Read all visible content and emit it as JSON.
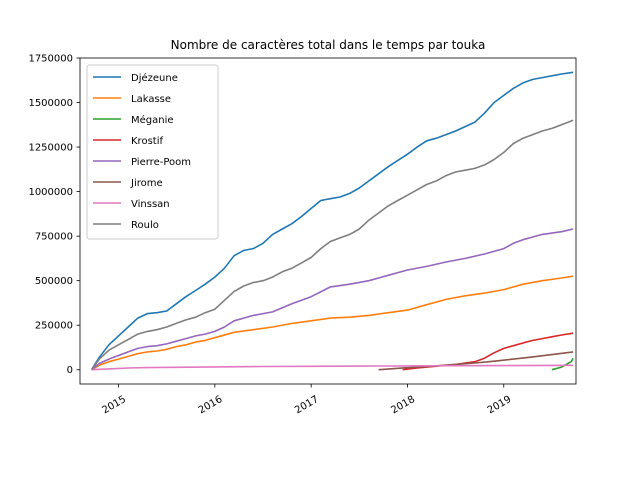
{
  "chart_data": {
    "type": "line",
    "title": "Nombre de caractères total dans le temps par touka",
    "xlabel": "",
    "ylabel": "",
    "x_ticks": [
      "2015",
      "2016",
      "2017",
      "2018",
      "2019"
    ],
    "y_ticks": [
      "0",
      "250000",
      "500000",
      "750000",
      "1000000",
      "1250000",
      "1500000",
      "1750000"
    ],
    "ylim": [
      -80000,
      1750000
    ],
    "xlim": [
      2014.6,
      2019.75
    ],
    "legend_position": "upper-left",
    "grid": false,
    "series": [
      {
        "name": "Djézeune",
        "color": "#1f77b4",
        "x": [
          2014.72,
          2014.8,
          2014.9,
          2015.0,
          2015.1,
          2015.2,
          2015.3,
          2015.4,
          2015.5,
          2015.6,
          2015.7,
          2015.8,
          2015.9,
          2016.0,
          2016.1,
          2016.2,
          2016.3,
          2016.4,
          2016.5,
          2016.6,
          2016.7,
          2016.8,
          2016.9,
          2017.0,
          2017.1,
          2017.2,
          2017.3,
          2017.4,
          2017.5,
          2017.6,
          2017.7,
          2017.8,
          2017.9,
          2018.0,
          2018.1,
          2018.2,
          2018.3,
          2018.4,
          2018.5,
          2018.6,
          2018.7,
          2018.8,
          2018.9,
          2019.0,
          2019.1,
          2019.2,
          2019.3,
          2019.4,
          2019.5,
          2019.6,
          2019.72
        ],
        "y": [
          0,
          70000,
          140000,
          190000,
          240000,
          290000,
          315000,
          320000,
          330000,
          370000,
          410000,
          445000,
          480000,
          520000,
          570000,
          640000,
          670000,
          680000,
          710000,
          760000,
          790000,
          820000,
          860000,
          905000,
          950000,
          960000,
          970000,
          990000,
          1020000,
          1060000,
          1100000,
          1140000,
          1175000,
          1210000,
          1250000,
          1285000,
          1300000,
          1320000,
          1340000,
          1365000,
          1390000,
          1440000,
          1500000,
          1540000,
          1580000,
          1610000,
          1630000,
          1640000,
          1650000,
          1660000,
          1670000
        ]
      },
      {
        "name": "Lakasse",
        "color": "#ff7f0e",
        "x": [
          2014.72,
          2014.8,
          2014.9,
          2015.0,
          2015.1,
          2015.2,
          2015.3,
          2015.4,
          2015.5,
          2015.6,
          2015.7,
          2015.8,
          2015.9,
          2016.0,
          2016.2,
          2016.4,
          2016.6,
          2016.8,
          2017.0,
          2017.2,
          2017.4,
          2017.6,
          2017.8,
          2018.0,
          2018.2,
          2018.4,
          2018.6,
          2018.8,
          2019.0,
          2019.2,
          2019.4,
          2019.6,
          2019.72
        ],
        "y": [
          0,
          25000,
          45000,
          60000,
          75000,
          90000,
          100000,
          105000,
          115000,
          130000,
          140000,
          155000,
          165000,
          180000,
          210000,
          225000,
          240000,
          260000,
          275000,
          290000,
          295000,
          305000,
          320000,
          335000,
          365000,
          395000,
          415000,
          430000,
          450000,
          480000,
          500000,
          515000,
          525000
        ]
      },
      {
        "name": "Méganie",
        "color": "#2ca02c",
        "x": [
          2019.5,
          2019.6,
          2019.7,
          2019.72
        ],
        "y": [
          0,
          15000,
          45000,
          65000
        ]
      },
      {
        "name": "Krostif",
        "color": "#d62728",
        "x": [
          2017.95,
          2018.1,
          2018.3,
          2018.5,
          2018.7,
          2018.8,
          2018.9,
          2019.0,
          2019.1,
          2019.2,
          2019.3,
          2019.4,
          2019.5,
          2019.6,
          2019.72
        ],
        "y": [
          0,
          10000,
          20000,
          30000,
          45000,
          65000,
          95000,
          120000,
          135000,
          150000,
          165000,
          175000,
          185000,
          195000,
          205000
        ]
      },
      {
        "name": "Pierre-Poom",
        "color": "#9467bd",
        "x": [
          2014.72,
          2014.8,
          2014.9,
          2015.0,
          2015.1,
          2015.2,
          2015.3,
          2015.4,
          2015.5,
          2015.6,
          2015.7,
          2015.8,
          2015.9,
          2016.0,
          2016.1,
          2016.2,
          2016.4,
          2016.6,
          2016.8,
          2017.0,
          2017.2,
          2017.4,
          2017.6,
          2017.8,
          2018.0,
          2018.2,
          2018.4,
          2018.6,
          2018.8,
          2019.0,
          2019.1,
          2019.2,
          2019.4,
          2019.6,
          2019.72
        ],
        "y": [
          0,
          35000,
          60000,
          80000,
          100000,
          120000,
          130000,
          135000,
          145000,
          160000,
          175000,
          190000,
          200000,
          215000,
          240000,
          275000,
          305000,
          325000,
          370000,
          410000,
          465000,
          480000,
          500000,
          530000,
          560000,
          580000,
          605000,
          625000,
          650000,
          680000,
          710000,
          730000,
          760000,
          775000,
          790000
        ]
      },
      {
        "name": "Jirome",
        "color": "#8c564b",
        "x": [
          2017.7,
          2017.9,
          2018.1,
          2018.3,
          2018.5,
          2018.7,
          2018.9,
          2019.1,
          2019.3,
          2019.5,
          2019.72
        ],
        "y": [
          0,
          8000,
          15000,
          22000,
          30000,
          38000,
          48000,
          60000,
          72000,
          85000,
          100000
        ]
      },
      {
        "name": "Vinssan",
        "color": "#e377c2",
        "x": [
          2014.72,
          2014.9,
          2015.1,
          2015.3,
          2015.6,
          2016.0,
          2016.5,
          2017.0,
          2017.5,
          2018.0,
          2018.5,
          2019.0,
          2019.5,
          2019.72
        ],
        "y": [
          0,
          5000,
          10000,
          12000,
          14000,
          16000,
          18000,
          19500,
          20500,
          21500,
          22500,
          23500,
          24500,
          25000
        ]
      },
      {
        "name": "Roulo",
        "color": "#7f7f7f",
        "x": [
          2014.72,
          2014.8,
          2014.9,
          2015.0,
          2015.1,
          2015.2,
          2015.3,
          2015.4,
          2015.5,
          2015.6,
          2015.7,
          2015.8,
          2015.9,
          2016.0,
          2016.1,
          2016.2,
          2016.3,
          2016.4,
          2016.5,
          2016.6,
          2016.7,
          2016.8,
          2016.9,
          2017.0,
          2017.1,
          2017.2,
          2017.3,
          2017.4,
          2017.5,
          2017.6,
          2017.7,
          2017.8,
          2017.9,
          2018.0,
          2018.1,
          2018.2,
          2018.3,
          2018.4,
          2018.5,
          2018.6,
          2018.7,
          2018.8,
          2018.9,
          2019.0,
          2019.1,
          2019.2,
          2019.3,
          2019.4,
          2019.5,
          2019.6,
          2019.72
        ],
        "y": [
          0,
          60000,
          110000,
          140000,
          170000,
          200000,
          215000,
          225000,
          240000,
          260000,
          280000,
          295000,
          320000,
          340000,
          390000,
          440000,
          470000,
          490000,
          500000,
          520000,
          550000,
          570000,
          600000,
          630000,
          680000,
          720000,
          740000,
          760000,
          790000,
          840000,
          880000,
          920000,
          950000,
          980000,
          1010000,
          1040000,
          1060000,
          1090000,
          1110000,
          1120000,
          1130000,
          1150000,
          1180000,
          1220000,
          1270000,
          1300000,
          1320000,
          1340000,
          1355000,
          1375000,
          1400000
        ]
      }
    ]
  }
}
